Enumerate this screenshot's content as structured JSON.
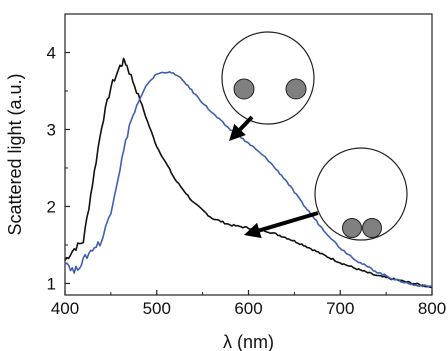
{
  "chart_data": {
    "type": "line",
    "xlabel": "λ (nm)",
    "ylabel": "Scattered light (a.u.)",
    "xlim": [
      400,
      800
    ],
    "ylim": [
      0.85,
      4.5
    ],
    "x_ticks": [
      400,
      500,
      600,
      700,
      800
    ],
    "y_ticks": [
      1,
      2,
      3,
      4
    ],
    "grid": false,
    "legend": "none",
    "series": [
      {
        "color": "#111111",
        "x": [
          400,
          410,
          420,
          430,
          440,
          450,
          460,
          465,
          470,
          480,
          490,
          500,
          520,
          540,
          560,
          580,
          600,
          620,
          640,
          660,
          680,
          700,
          720,
          740,
          760,
          780,
          800
        ],
        "y": [
          1.3,
          1.45,
          1.55,
          2.3,
          3.05,
          3.55,
          3.82,
          3.9,
          3.75,
          3.45,
          3.1,
          2.78,
          2.35,
          2.05,
          1.85,
          1.76,
          1.72,
          1.68,
          1.6,
          1.5,
          1.38,
          1.27,
          1.18,
          1.1,
          1.05,
          1.0,
          0.95
        ]
      },
      {
        "color": "#3f5fb0",
        "x": [
          400,
          410,
          420,
          430,
          440,
          450,
          460,
          470,
          480,
          490,
          500,
          510,
          520,
          530,
          540,
          560,
          580,
          600,
          620,
          640,
          660,
          680,
          700,
          720,
          740,
          760,
          780,
          800
        ],
        "y": [
          1.3,
          1.15,
          1.3,
          1.45,
          1.55,
          1.95,
          2.5,
          3.05,
          3.35,
          3.6,
          3.72,
          3.75,
          3.72,
          3.62,
          3.48,
          3.22,
          3.0,
          2.82,
          2.62,
          2.35,
          2.02,
          1.72,
          1.46,
          1.28,
          1.15,
          1.05,
          0.98,
          0.96
        ]
      }
    ]
  },
  "insets": [
    {
      "name": "separated-dimer",
      "arrow_to_series": 1
    },
    {
      "name": "touching-dimer",
      "arrow_to_series": 0
    }
  ]
}
